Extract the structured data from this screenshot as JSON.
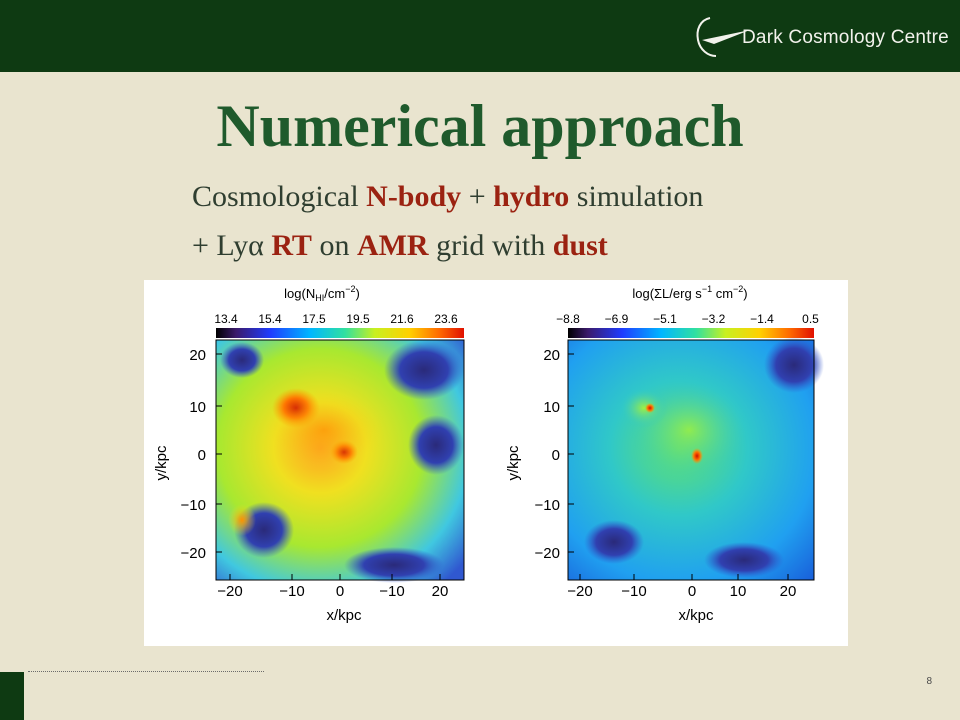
{
  "header": {
    "logo_text": "Dark Cosmology Centre",
    "bar_color": "#0e3a12"
  },
  "slide": {
    "title": "Numerical approach",
    "line1": {
      "part1": "Cosmological ",
      "nbody": "N-body",
      "part2": " + ",
      "hydro": "hydro",
      "part3": " simulation"
    },
    "line2": {
      "part1": "+ Ly",
      "alpha": "α",
      "part2": " ",
      "rt": "RT",
      "part3": " on ",
      "amr": "AMR",
      "part4": " grid with ",
      "dust": "dust"
    },
    "highlight_color": "#9b2211",
    "page_number": "8"
  },
  "figure": {
    "left_panel": {
      "colorbar_label_main": "log(N",
      "colorbar_label_sub": "HI",
      "colorbar_label_unit": "/cm",
      "colorbar_label_exp": "−2",
      "colorbar_label_close": ")",
      "colorbar_ticks": [
        "13.4",
        "15.4",
        "17.5",
        "19.5",
        "21.6",
        "23.6"
      ],
      "y_ticks": [
        "20",
        "10",
        "0",
        "−10",
        "−20"
      ],
      "x_ticks": [
        "−20",
        "−10",
        "0",
        "−10",
        "20"
      ],
      "ylabel": "y/kpc",
      "xlabel": "x/kpc"
    },
    "right_panel": {
      "colorbar_label_main": "log(ΣL/erg s",
      "colorbar_label_exp1": "−1",
      "colorbar_label_mid": " cm",
      "colorbar_label_exp2": "−2",
      "colorbar_label_close": ")",
      "colorbar_ticks": [
        "−8.8",
        "−6.9",
        "−5.1",
        "−3.2",
        "−1.4",
        "0.5"
      ],
      "y_ticks": [
        "20",
        "10",
        "0",
        "−10",
        "−20"
      ],
      "x_ticks": [
        "−20",
        "−10",
        "0",
        "10",
        "20"
      ],
      "ylabel": "y/kpc",
      "xlabel": "x/kpc"
    }
  }
}
